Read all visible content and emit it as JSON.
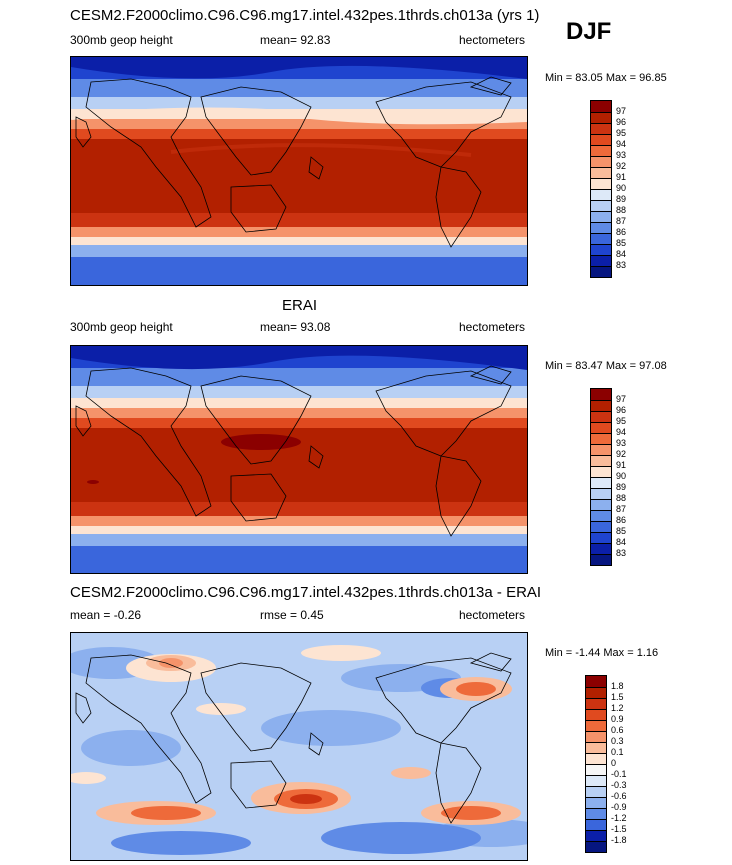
{
  "season_label": "DJF",
  "panels": [
    {
      "title": "CESM2.F2000climo.C96.C96.mg17.intel.432pes.1thrds.ch013a (yrs 1)",
      "left_label": "300mb geop height",
      "center_label": "mean=  92.83",
      "right_label": "hectometers",
      "minmax": "Min =  83.05 Max =  96.85",
      "levels": [
        "97",
        "96",
        "95",
        "94",
        "93",
        "92",
        "91",
        "90",
        "89",
        "88",
        "87",
        "86",
        "85",
        "84",
        "83"
      ],
      "colors": [
        "#8b0000",
        "#b22000",
        "#cc3311",
        "#e04a1f",
        "#ee6a3a",
        "#f5936a",
        "#f9bc9b",
        "#fde4d2",
        "#dde9f8",
        "#b8d0f4",
        "#8cb0ee",
        "#5f8be6",
        "#3a66dc",
        "#1f44cf",
        "#0b1fa8",
        "#061680"
      ]
    },
    {
      "title": "ERAI",
      "left_label": "300mb geop height",
      "center_label": "mean=  93.08",
      "right_label": "hectometers",
      "minmax": "Min =  83.47 Max =  97.08",
      "levels": [
        "97",
        "96",
        "95",
        "94",
        "93",
        "92",
        "91",
        "90",
        "89",
        "88",
        "87",
        "86",
        "85",
        "84",
        "83"
      ],
      "colors": [
        "#8b0000",
        "#b22000",
        "#cc3311",
        "#e04a1f",
        "#ee6a3a",
        "#f5936a",
        "#f9bc9b",
        "#fde4d2",
        "#dde9f8",
        "#b8d0f4",
        "#8cb0ee",
        "#5f8be6",
        "#3a66dc",
        "#1f44cf",
        "#0b1fa8",
        "#061680"
      ]
    },
    {
      "title": "CESM2.F2000climo.C96.C96.mg17.intel.432pes.1thrds.ch013a - ERAI",
      "left_label": "mean =  -0.26",
      "center_label": "rmse =   0.45",
      "right_label": "hectometers",
      "minmax": "Min =  -1.44 Max =   1.16",
      "levels": [
        "1.8",
        "1.5",
        "1.2",
        "0.9",
        "0.6",
        "0.3",
        "0.1",
        "0",
        "-0.1",
        "-0.3",
        "-0.6",
        "-0.9",
        "-1.2",
        "-1.5",
        "-1.8"
      ],
      "colors": [
        "#8b0000",
        "#b22000",
        "#cc3311",
        "#e04a1f",
        "#ee6a3a",
        "#f5936a",
        "#f9bc9b",
        "#fde4d2",
        "#f6f6f6",
        "#dde9f8",
        "#b8d0f4",
        "#8cb0ee",
        "#5f8be6",
        "#3a66dc",
        "#0b1fa8",
        "#061680"
      ]
    }
  ],
  "chart_data": [
    {
      "type": "heatmap",
      "title": "CESM2.F2000climo.C96.C96.mg17.intel.432pes.1thrds.ch013a (yrs 1)",
      "variable": "300mb geop height",
      "units": "hectometers",
      "season": "DJF",
      "mean": 92.83,
      "min": 83.05,
      "max": 96.85,
      "contour_levels": [
        83,
        84,
        85,
        86,
        87,
        88,
        89,
        90,
        91,
        92,
        93,
        94,
        95,
        96,
        97
      ],
      "zonal_profile": {
        "latitude": [
          90,
          70,
          55,
          45,
          35,
          25,
          15,
          0,
          -15,
          -25,
          -35,
          -45,
          -55,
          -70,
          -90
        ],
        "value": [
          84,
          85.5,
          87.5,
          90,
          93.5,
          95.5,
          96,
          96,
          96,
          95.5,
          94,
          91,
          88,
          85.5,
          84
        ]
      }
    },
    {
      "type": "heatmap",
      "title": "ERAI",
      "variable": "300mb geop height",
      "units": "hectometers",
      "season": "DJF",
      "mean": 93.08,
      "min": 83.47,
      "max": 97.08,
      "contour_levels": [
        83,
        84,
        85,
        86,
        87,
        88,
        89,
        90,
        91,
        92,
        93,
        94,
        95,
        96,
        97
      ],
      "zonal_profile": {
        "latitude": [
          90,
          70,
          55,
          45,
          35,
          25,
          15,
          0,
          -15,
          -25,
          -35,
          -45,
          -55,
          -70,
          -90
        ],
        "value": [
          84.5,
          86,
          88,
          90.5,
          93.5,
          95.5,
          96.5,
          96.5,
          96.5,
          95.5,
          94,
          91.5,
          88.5,
          86,
          84.5
        ]
      }
    },
    {
      "type": "heatmap",
      "title": "CESM2.F2000climo.C96.C96.mg17.intel.432pes.1thrds.ch013a - ERAI",
      "variable": "300mb geop height difference",
      "units": "hectometers",
      "season": "DJF",
      "mean": -0.26,
      "rmse": 0.45,
      "min": -1.44,
      "max": 1.16,
      "contour_levels": [
        -1.8,
        -1.5,
        -1.2,
        -0.9,
        -0.6,
        -0.3,
        -0.1,
        0,
        0.1,
        0.3,
        0.6,
        0.9,
        1.2,
        1.5,
        1.8
      ]
    }
  ]
}
